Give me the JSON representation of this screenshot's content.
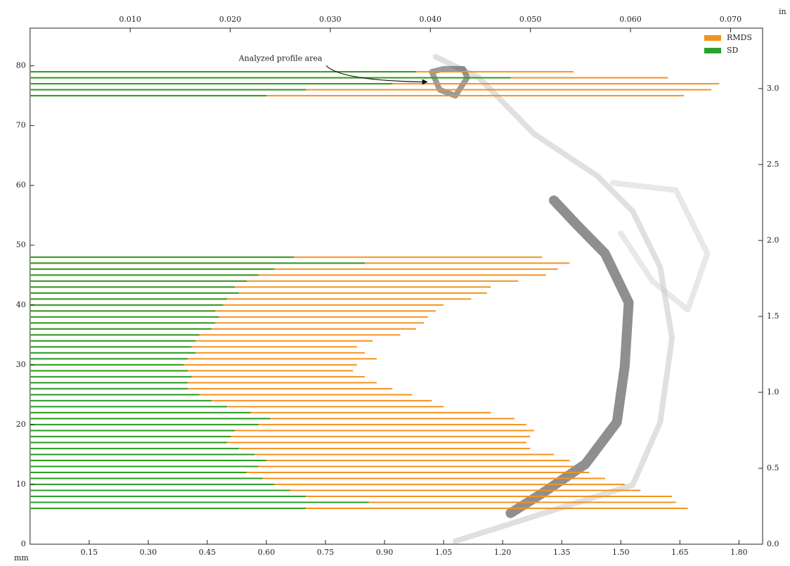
{
  "chart_data": {
    "type": "barh",
    "annotation": {
      "text": "Analyzed profile area",
      "xy": [
        1.01,
        77.3
      ],
      "xytext": [
        0.52,
        81.2
      ]
    },
    "xlabel": "mm",
    "x2label": "in",
    "xlim": [
      0,
      1.86
    ],
    "xticks": [
      0.15,
      {
        "value": 0.3,
        "label": "0.30"
      },
      0.45,
      {
        "value": 0.6,
        "label": "0.60"
      },
      0.75,
      {
        "value": 0.9,
        "label": "0.90"
      },
      1.05,
      {
        "value": 1.2,
        "label": "1.20"
      },
      1.35,
      {
        "value": 1.5,
        "label": "1.50"
      },
      1.65,
      {
        "value": 1.8,
        "label": "1.80"
      }
    ],
    "x2lim": [
      0,
      0.0732
    ],
    "x2ticks": [
      {
        "value": 0.01,
        "label": "0.010"
      },
      {
        "value": 0.02,
        "label": "0.020"
      },
      {
        "value": 0.03,
        "label": "0.030"
      },
      {
        "value": 0.04,
        "label": "0.040"
      },
      {
        "value": 0.05,
        "label": "0.050"
      },
      {
        "value": 0.06,
        "label": "0.060"
      },
      {
        "value": 0.07,
        "label": "0.070"
      }
    ],
    "ylim": [
      0,
      86.3
    ],
    "yticks": [
      0,
      10,
      20,
      30,
      40,
      50,
      60,
      70,
      80
    ],
    "y2lim": [
      0,
      3.398
    ],
    "y2ticks": [
      {
        "value": 0,
        "label": "0.0"
      },
      0.5,
      {
        "value": 1,
        "label": "1.0"
      },
      1.5,
      {
        "value": 2,
        "label": "2.0"
      },
      2.5,
      {
        "value": 3,
        "label": "3.0"
      }
    ],
    "legend": "upper right",
    "y": [
      6,
      7,
      8,
      9,
      10,
      11,
      12,
      13,
      14,
      15,
      16,
      17,
      18,
      19,
      20,
      21,
      22,
      23,
      24,
      25,
      26,
      27,
      28,
      29,
      30,
      31,
      32,
      33,
      34,
      35,
      36,
      37,
      38,
      39,
      40,
      41,
      42,
      43,
      44,
      45,
      46,
      47,
      48,
      75,
      76,
      77,
      78,
      79
    ],
    "series": [
      {
        "name": "RMDS",
        "color": "#f5921e",
        "values": [
          1.67,
          1.64,
          1.63,
          1.55,
          1.51,
          1.46,
          1.42,
          1.38,
          1.37,
          1.33,
          1.27,
          1.26,
          1.27,
          1.28,
          1.26,
          1.23,
          1.17,
          1.05,
          1.02,
          0.97,
          0.92,
          0.88,
          0.85,
          0.82,
          0.83,
          0.88,
          0.85,
          0.83,
          0.87,
          0.94,
          0.98,
          1.0,
          1.01,
          1.03,
          1.05,
          1.12,
          1.16,
          1.17,
          1.24,
          1.31,
          1.34,
          1.37,
          1.3,
          1.66,
          1.73,
          1.75,
          1.62,
          1.38
        ]
      },
      {
        "name": "SD",
        "color": "#2ca02c",
        "values": [
          0.7,
          0.86,
          0.7,
          0.66,
          0.62,
          0.59,
          0.55,
          0.58,
          0.6,
          0.57,
          0.53,
          0.5,
          0.51,
          0.52,
          0.58,
          0.61,
          0.56,
          0.5,
          0.46,
          0.43,
          0.4,
          0.4,
          0.41,
          0.4,
          0.39,
          0.4,
          0.42,
          0.41,
          0.42,
          0.43,
          0.46,
          0.47,
          0.48,
          0.47,
          0.49,
          0.5,
          0.53,
          0.52,
          0.55,
          0.58,
          0.62,
          0.85,
          0.67,
          0.6,
          0.7,
          0.92,
          1.22,
          0.98
        ]
      }
    ],
    "profile": [
      {
        "color": "#333333",
        "x": [
          1.22,
          1.3,
          1.41,
          1.49,
          1.51,
          1.52,
          1.46,
          1.39,
          1.33
        ],
        "y": [
          5.2,
          8.5,
          13.4,
          20.4,
          29.8,
          40.4,
          48.6,
          53.3,
          57.5
        ]
      },
      {
        "color": "#bbbbbb",
        "x": [
          1.08,
          1.53,
          1.6,
          1.63,
          1.6,
          1.53,
          1.44,
          1.28,
          1.14,
          1.03
        ],
        "y": [
          0.5,
          9.9,
          20.4,
          34.5,
          46.3,
          55.7,
          61.6,
          68.6,
          78,
          81.5
        ]
      },
      {
        "color": "#cccccc",
        "x": [
          1.48,
          1.64,
          1.72,
          1.67,
          1.58,
          1.5
        ],
        "y": [
          60.4,
          59.2,
          48.6,
          39.2,
          44,
          52
        ]
      },
      {
        "color": "#222222",
        "x": [
          1.02,
          1.04,
          1.08,
          1.11,
          1.1,
          1.05,
          1.02
        ],
        "y": [
          79,
          76,
          75,
          78,
          79.5,
          79.5,
          79
        ]
      }
    ]
  }
}
